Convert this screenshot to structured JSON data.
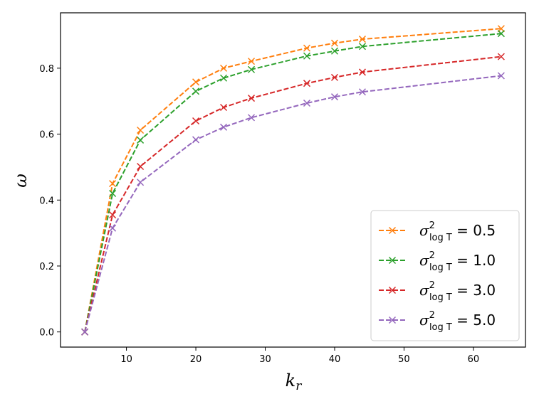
{
  "chart_data": {
    "type": "line",
    "xlabel": "k_r",
    "ylabel": "ω",
    "xlim": [
      0.5,
      67.5
    ],
    "ylim": [
      -0.046,
      0.968
    ],
    "xticks": [
      10,
      20,
      30,
      40,
      50,
      60
    ],
    "yticks": [
      0.0,
      0.2,
      0.4,
      0.6,
      0.8
    ],
    "xtick_labels": [
      "10",
      "20",
      "30",
      "40",
      "50",
      "60"
    ],
    "ytick_labels": [
      "0.0",
      "0.2",
      "0.4",
      "0.6",
      "0.8"
    ],
    "grid": false,
    "legend_position": "lower-right",
    "marker": "x",
    "line_style": "dashed",
    "x": [
      4,
      8,
      12,
      20,
      24,
      28,
      36,
      40,
      44,
      64
    ],
    "series": [
      {
        "legend_value": "0.5",
        "color": "#ff7f0e",
        "values": [
          0.0,
          0.45,
          0.612,
          0.758,
          0.8,
          0.821,
          0.861,
          0.876,
          0.888,
          0.92
        ]
      },
      {
        "legend_value": "1.0",
        "color": "#2ca02c",
        "values": [
          0.0,
          0.42,
          0.582,
          0.73,
          0.77,
          0.796,
          0.837,
          0.852,
          0.866,
          0.905
        ]
      },
      {
        "legend_value": "3.0",
        "color": "#d62728",
        "values": [
          0.0,
          0.355,
          0.502,
          0.64,
          0.681,
          0.709,
          0.754,
          0.772,
          0.788,
          0.835
        ]
      },
      {
        "legend_value": "5.0",
        "color": "#9467bd",
        "values": [
          0.0,
          0.315,
          0.454,
          0.583,
          0.621,
          0.65,
          0.694,
          0.713,
          0.728,
          0.777
        ]
      }
    ],
    "legend": {
      "symbol": "σ",
      "subscript": "log T",
      "superscript": "2",
      "equals": "="
    }
  }
}
